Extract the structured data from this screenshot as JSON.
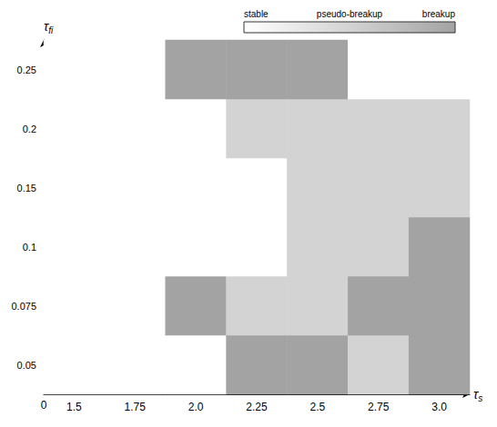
{
  "chart_data": {
    "type": "heatmap",
    "x_label": {
      "symbol": "τ",
      "subscript": "s"
    },
    "y_label": {
      "symbol": "τ",
      "subscript": "fi"
    },
    "origin_label": "0",
    "categories": [
      "1.5",
      "1.75",
      "2.0",
      "2.25",
      "2.5",
      "2.75",
      "3.0"
    ],
    "y_categories": [
      "0.05",
      "0.075",
      "0.1",
      "0.15",
      "0.2",
      "0.25"
    ],
    "cells": [
      [
        0,
        0,
        0,
        2,
        2,
        1,
        2
      ],
      [
        0,
        0,
        2,
        1,
        1,
        2,
        2
      ],
      [
        0,
        0,
        0,
        0,
        1,
        1,
        2
      ],
      [
        0,
        0,
        0,
        0,
        1,
        1,
        1
      ],
      [
        0,
        0,
        0,
        1,
        1,
        1,
        1
      ],
      [
        0,
        0,
        2,
        2,
        2,
        0,
        0
      ]
    ],
    "color_bar": {
      "range": [
        0,
        2
      ],
      "ticks": [
        {
          "value": 0,
          "label": "stable"
        },
        {
          "value": 1,
          "label": "pseudo-breakup"
        },
        {
          "value": 2,
          "label": "breakup"
        }
      ],
      "colors": [
        "#ffffff",
        "#d3d3d3",
        "#a3a3a3"
      ]
    },
    "grid": false
  }
}
